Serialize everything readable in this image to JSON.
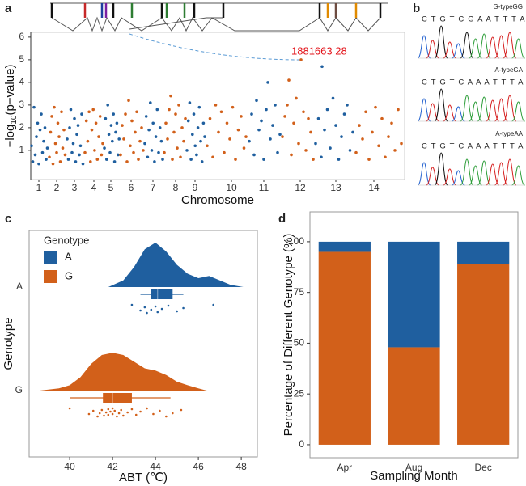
{
  "panel_labels": [
    "a",
    "b",
    "c",
    "d"
  ],
  "sanger": [
    {
      "genotype": "G-typeGG",
      "sequence": "C T G T C G A A T T T A"
    },
    {
      "genotype": "A-typeGA",
      "sequence": "C T G T C A A A T T T A"
    },
    {
      "genotype": "A-typeAA",
      "sequence": "C T G T C A A A T T T A"
    }
  ],
  "chart_data": [
    {
      "type": "scatter",
      "xlabel": "Chromosome",
      "ylabel": [
        "−log",
        "10",
        "(p−value)"
      ],
      "annotation": "1881663 28",
      "xlim": [
        0,
        462
      ],
      "ylim": [
        -0.29,
        6.21
      ],
      "xticks": [
        {
          "value": 10,
          "label": "1"
        },
        {
          "value": 32,
          "label": "2"
        },
        {
          "value": 54,
          "label": "3"
        },
        {
          "value": 78,
          "label": "4"
        },
        {
          "value": 99,
          "label": "5"
        },
        {
          "value": 124,
          "label": "6"
        },
        {
          "value": 151,
          "label": "7"
        },
        {
          "value": 179,
          "label": "8"
        },
        {
          "value": 203,
          "label": "9"
        },
        {
          "value": 248,
          "label": "10"
        },
        {
          "value": 288,
          "label": "11"
        },
        {
          "value": 333,
          "label": "12"
        },
        {
          "value": 377,
          "label": "13"
        },
        {
          "value": 424,
          "label": "14"
        }
      ],
      "yticks": [
        1,
        2,
        3,
        4,
        5,
        6
      ],
      "series": [
        {
          "color": "#1f5f9f",
          "x": [
            1,
            2.5,
            4,
            5.5,
            7,
            8.5,
            10,
            11.5,
            13,
            14.5,
            16,
            17.5,
            19,
            20.5
          ],
          "values": [
            1.2,
            0.5,
            2.9,
            0.8,
            1.6,
            2.2,
            0.4,
            1.9,
            2.6,
            0.9,
            1.4,
            2.0,
            0.6,
            1.1
          ]
        },
        {
          "color": "#d2601a",
          "x": [
            23,
            24.5,
            26,
            27.5,
            29,
            30.5,
            32,
            33.5,
            35,
            36.5,
            38,
            39.5,
            41,
            42.5
          ],
          "values": [
            0.7,
            1.8,
            2.5,
            0.4,
            2.9,
            1.3,
            0.9,
            2.2,
            1.6,
            0.5,
            2.7,
            1.1,
            1.9,
            0.8
          ]
        },
        {
          "color": "#1f5f9f",
          "x": [
            45,
            46.5,
            48,
            49.5,
            51,
            52.5,
            54,
            55.5,
            57,
            58.5,
            60,
            61.5,
            63,
            64.5
          ],
          "values": [
            1.5,
            0.6,
            2.0,
            2.8,
            0.9,
            1.3,
            2.4,
            0.5,
            1.7,
            2.1,
            0.8,
            1.2,
            2.6,
            0.4
          ]
        },
        {
          "color": "#d2601a",
          "x": [
            67,
            68.7,
            70.4,
            72.1,
            73.8,
            75.5,
            77.2,
            78.9,
            80.6,
            82.3,
            84,
            85.7,
            87.4,
            89
          ],
          "values": [
            0.9,
            2.3,
            1.4,
            2.7,
            0.5,
            1.9,
            2.8,
            1.0,
            2.2,
            0.6,
            1.6,
            2.5,
            0.8,
            1.3
          ]
        },
        {
          "color": "#1f5f9f",
          "x": [
            91,
            92.4,
            93.8,
            95.2,
            96.6,
            98,
            99.4,
            100.8,
            102.2,
            103.6,
            105,
            106.4,
            107.8,
            109.2
          ],
          "values": [
            1.1,
            2.4,
            0.6,
            3.0,
            1.7,
            0.9,
            2.1,
            1.4,
            2.6,
            0.5,
            1.8,
            2.2,
            0.8,
            1.5
          ]
        },
        {
          "color": "#d2601a",
          "x": [
            111,
            113,
            115,
            117,
            119,
            121,
            123,
            125,
            127,
            129,
            131,
            133,
            135,
            137,
            139
          ],
          "values": [
            0.8,
            2.1,
            1.5,
            2.6,
            0.5,
            3.2,
            1.2,
            2.3,
            0.9,
            1.8,
            2.7,
            0.6,
            1.4,
            2.0,
            1.0
          ]
        },
        {
          "color": "#1f5f9f",
          "x": [
            141,
            142.7,
            144.4,
            146.1,
            147.8,
            149.5,
            151.2,
            152.9,
            154.6,
            156.3,
            158,
            159.7,
            161.4,
            163
          ],
          "values": [
            1.3,
            2.5,
            0.7,
            1.9,
            3.1,
            1.0,
            2.2,
            0.5,
            1.6,
            2.8,
            0.9,
            2.0,
            1.4,
            0.6
          ]
        },
        {
          "color": "#d2601a",
          "x": [
            165,
            167,
            169,
            171,
            173,
            175,
            177,
            179,
            181,
            183,
            185,
            187,
            189,
            191
          ],
          "values": [
            0.9,
            2.2,
            1.5,
            2.8,
            3.4,
            0.6,
            1.8,
            2.6,
            1.1,
            3.0,
            0.7,
            2.0,
            1.4,
            2.4
          ]
        },
        {
          "color": "#1f5f9f",
          "x": [
            193,
            194.7,
            196.4,
            198.1,
            199.8,
            201.5,
            203.2,
            204.9,
            206.6,
            208.3,
            210,
            211.7,
            213.4,
            215
          ],
          "values": [
            1.0,
            2.3,
            3.1,
            0.6,
            1.7,
            2.6,
            1.2,
            0.8,
            2.0,
            2.9,
            1.4,
            0.5,
            2.2,
            1.6
          ]
        },
        {
          "color": "#d2601a",
          "x": [
            218,
            221.5,
            225,
            228.5,
            232,
            235.5,
            239,
            242.5,
            246,
            249.5,
            253,
            256.5,
            260,
            263.5,
            266
          ],
          "values": [
            1.2,
            2.4,
            0.7,
            3.0,
            1.8,
            2.7,
            0.9,
            2.2,
            1.5,
            2.9,
            0.6,
            1.9,
            2.5,
            1.1,
            1.6
          ]
        },
        {
          "color": "#1f5f9f",
          "x": [
            270,
            273,
            276,
            279,
            282,
            285,
            288,
            291,
            293,
            296,
            299,
            302,
            305,
            308
          ],
          "values": [
            1.4,
            2.6,
            0.8,
            3.2,
            1.9,
            2.3,
            0.6,
            2.8,
            4.0,
            1.5,
            2.1,
            3.0,
            0.9,
            1.7
          ]
        },
        {
          "color": "#d2601a",
          "x": [
            311,
            314,
            317,
            319,
            322,
            325,
            328,
            331,
            334,
            337,
            340,
            343,
            346,
            349
          ],
          "values": [
            1.6,
            2.5,
            3.0,
            4.1,
            0.8,
            2.2,
            3.3,
            1.3,
            5.0,
            2.7,
            1.0,
            2.4,
            1.8,
            0.6
          ]
        },
        {
          "color": "#1f5f9f",
          "x": [
            352,
            355.5,
            359,
            360,
            363,
            366.5,
            370,
            373.5,
            377,
            380.5,
            384,
            387.5,
            391,
            394.5,
            398
          ],
          "values": [
            1.3,
            2.4,
            0.7,
            4.7,
            1.9,
            2.8,
            1.1,
            3.3,
            2.1,
            0.6,
            1.6,
            2.6,
            3.0,
            1.0,
            1.8
          ]
        },
        {
          "color": "#d2601a",
          "x": [
            402,
            406,
            410,
            414,
            418,
            422,
            426,
            430,
            434,
            438,
            442,
            446,
            450,
            454,
            458
          ],
          "values": [
            0.9,
            2.1,
            1.5,
            2.7,
            0.6,
            1.8,
            2.9,
            1.2,
            2.4,
            0.7,
            1.6,
            2.2,
            1.0,
            2.8,
            1.3
          ]
        }
      ]
    },
    {
      "type": "raincloud",
      "xlabel": "ABT (℃)",
      "ylabel": "Genotype",
      "legend_title": "Genotype",
      "legend": "top-left",
      "xlim": [
        38.11,
        48.75
      ],
      "xticks": [
        40,
        42,
        44,
        46,
        48
      ],
      "groups": [
        {
          "name": "A",
          "color": "#1f5f9f",
          "density_x": [
            41.8,
            42.5,
            43,
            43.5,
            44,
            44.5,
            45,
            45.5,
            46,
            46.5,
            47,
            47.5,
            48.1
          ],
          "density": [
            0,
            0.15,
            0.45,
            0.85,
            1.0,
            0.8,
            0.5,
            0.3,
            0.2,
            0.25,
            0.15,
            0.05,
            0
          ],
          "box": {
            "min": 43.3,
            "q1": 43.8,
            "median": 44.1,
            "q3": 44.8,
            "max": 45.3
          },
          "points": [
            42.9,
            43.3,
            43.5,
            43.6,
            43.8,
            44.0,
            44.1,
            44.3,
            44.6,
            45.0,
            45.3,
            46.7
          ]
        },
        {
          "name": "G",
          "color": "#d2601a",
          "density_x": [
            38.6,
            39.5,
            40,
            40.5,
            41,
            41.5,
            42,
            42.5,
            43,
            43.5,
            44,
            44.5,
            45,
            45.5,
            46,
            46.4
          ],
          "density": [
            0,
            0.05,
            0.12,
            0.3,
            0.6,
            0.8,
            0.85,
            0.8,
            0.65,
            0.5,
            0.45,
            0.35,
            0.2,
            0.12,
            0.05,
            0
          ],
          "box": {
            "min": 40.0,
            "q1": 41.55,
            "median": 42.0,
            "q3": 42.9,
            "max": 44.7
          },
          "points": [
            40.0,
            40.9,
            41.1,
            41.3,
            41.4,
            41.5,
            41.6,
            41.7,
            41.8,
            41.8,
            41.9,
            42.0,
            42.0,
            42.1,
            42.2,
            42.3,
            42.4,
            42.5,
            42.7,
            42.9,
            43.1,
            43.3,
            43.6,
            43.9,
            44.2,
            44.5,
            44.8,
            45.2
          ]
        }
      ]
    },
    {
      "type": "bar",
      "stacked": true,
      "xlabel": "Sampling Month",
      "ylabel": "Percentage of Different Genotype (%)",
      "categories": [
        "Apr",
        "Aug",
        "Dec"
      ],
      "ylim": [
        -6.4,
        114.7
      ],
      "yticks": [
        0,
        25,
        50,
        75,
        100
      ],
      "series": [
        {
          "color": "#d2601a",
          "values": [
            95,
            48,
            89
          ]
        },
        {
          "color": "#1f5f9f",
          "values": [
            5,
            52,
            11
          ]
        }
      ]
    }
  ]
}
